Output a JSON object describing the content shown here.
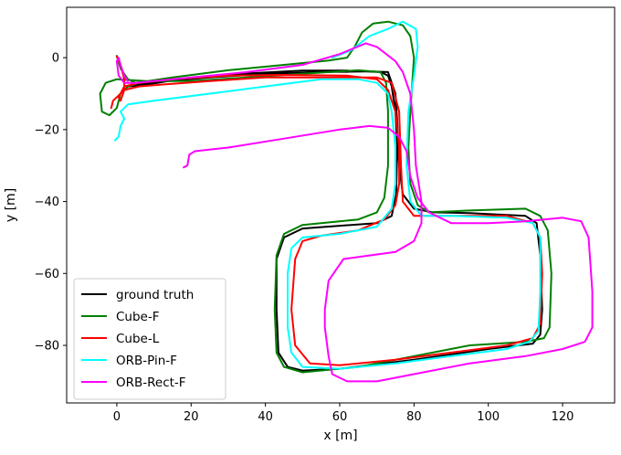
{
  "chart_data": {
    "type": "line",
    "title": "",
    "xlabel": "x [m]",
    "ylabel": "y [m]",
    "xlim": [
      -13.5,
      134
    ],
    "ylim": [
      -96,
      14
    ],
    "xticks": [
      0,
      20,
      40,
      60,
      80,
      100,
      120
    ],
    "yticks": [
      0,
      -20,
      -40,
      -60,
      -80
    ],
    "grid": false,
    "legend_position": "lower-left",
    "series": [
      {
        "name": "ground truth",
        "color": "#000000",
        "points": [
          [
            3,
            -8
          ],
          [
            4,
            -7.5
          ],
          [
            10,
            -6.8
          ],
          [
            20,
            -5.6
          ],
          [
            35,
            -4.4
          ],
          [
            50,
            -3.6
          ],
          [
            62,
            -3.6
          ],
          [
            71,
            -4
          ],
          [
            73,
            -5
          ],
          [
            74,
            -8
          ],
          [
            75,
            -15
          ],
          [
            75.5,
            -25
          ],
          [
            75.2,
            -38
          ],
          [
            74,
            -44
          ],
          [
            70,
            -46
          ],
          [
            50,
            -47.5
          ],
          [
            45,
            -50
          ],
          [
            43,
            -56
          ],
          [
            43,
            -70
          ],
          [
            43.5,
            -82
          ],
          [
            46,
            -86
          ],
          [
            50,
            -87
          ],
          [
            60,
            -86.5
          ],
          [
            80,
            -84
          ],
          [
            100,
            -81
          ],
          [
            112,
            -79.5
          ],
          [
            114,
            -77
          ],
          [
            114.5,
            -70
          ],
          [
            114,
            -55
          ],
          [
            113,
            -46
          ],
          [
            110,
            -44
          ],
          [
            95,
            -43.2
          ],
          [
            85,
            -43
          ],
          [
            80,
            -42
          ],
          [
            77,
            -38
          ],
          [
            76,
            -30
          ],
          [
            75.5,
            -18
          ],
          [
            75,
            -10
          ],
          [
            73,
            -4
          ],
          [
            68,
            -3.8
          ],
          [
            55,
            -4
          ],
          [
            40,
            -4.5
          ],
          [
            25,
            -5.5
          ],
          [
            14,
            -6.5
          ],
          [
            8,
            -7.5
          ],
          [
            3,
            -8
          ]
        ]
      },
      {
        "name": "Cube-F",
        "color": "#007f00",
        "points": [
          [
            0,
            0.5
          ],
          [
            1,
            -3
          ],
          [
            3,
            -6
          ],
          [
            5,
            -7
          ],
          [
            15,
            -5.5
          ],
          [
            30,
            -3.5
          ],
          [
            45,
            -2
          ],
          [
            57,
            -0.8
          ],
          [
            62,
            0
          ],
          [
            64,
            3
          ],
          [
            66,
            7
          ],
          [
            69,
            9.5
          ],
          [
            73,
            10
          ],
          [
            77,
            9
          ],
          [
            79,
            6
          ],
          [
            80,
            0
          ],
          [
            79,
            -15
          ],
          [
            78.5,
            -25
          ],
          [
            79,
            -35
          ],
          [
            81,
            -41
          ],
          [
            84,
            -43
          ],
          [
            95,
            -42.5
          ],
          [
            110,
            -42
          ],
          [
            114,
            -44
          ],
          [
            116,
            -48
          ],
          [
            117,
            -60
          ],
          [
            116.5,
            -75
          ],
          [
            115,
            -78
          ],
          [
            110,
            -79
          ],
          [
            95,
            -80
          ],
          [
            80,
            -83
          ],
          [
            65,
            -86
          ],
          [
            50,
            -87.5
          ],
          [
            45,
            -86
          ],
          [
            43,
            -82
          ],
          [
            42.5,
            -70
          ],
          [
            43,
            -55
          ],
          [
            45,
            -49
          ],
          [
            50,
            -46.5
          ],
          [
            65,
            -45
          ],
          [
            70,
            -43
          ],
          [
            72,
            -39
          ],
          [
            73,
            -30
          ],
          [
            73,
            -15
          ],
          [
            72.5,
            -7
          ],
          [
            71,
            -4
          ],
          [
            65,
            -3.5
          ],
          [
            50,
            -4.5
          ],
          [
            35,
            -5.5
          ],
          [
            20,
            -6.5
          ],
          [
            8,
            -6.5
          ],
          [
            0,
            -6
          ],
          [
            -3,
            -7
          ],
          [
            -4.5,
            -10
          ],
          [
            -4,
            -15
          ],
          [
            -2,
            -16
          ],
          [
            0,
            -14
          ],
          [
            1,
            -10
          ],
          [
            3,
            -8
          ],
          [
            6,
            -7
          ]
        ]
      },
      {
        "name": "Cube-L",
        "color": "#ff0000",
        "points": [
          [
            0,
            0.3
          ],
          [
            1,
            -2
          ],
          [
            2,
            -6
          ],
          [
            2,
            -9
          ],
          [
            1,
            -12
          ],
          [
            0.5,
            -11
          ],
          [
            2,
            -8
          ],
          [
            6,
            -7
          ],
          [
            15,
            -6
          ],
          [
            30,
            -5
          ],
          [
            45,
            -4.8
          ],
          [
            62,
            -5
          ],
          [
            70,
            -6
          ],
          [
            73,
            -9
          ],
          [
            75,
            -15
          ],
          [
            76,
            -25
          ],
          [
            76,
            -35
          ],
          [
            75,
            -41
          ],
          [
            72,
            -45
          ],
          [
            65,
            -48
          ],
          [
            55,
            -49.5
          ],
          [
            50,
            -51
          ],
          [
            48,
            -56
          ],
          [
            47,
            -70
          ],
          [
            48,
            -80
          ],
          [
            52,
            -85
          ],
          [
            60,
            -85.5
          ],
          [
            75,
            -84
          ],
          [
            90,
            -82
          ],
          [
            105,
            -80
          ],
          [
            112,
            -78
          ],
          [
            114,
            -74
          ],
          [
            114.5,
            -60
          ],
          [
            114,
            -50
          ],
          [
            112,
            -46
          ],
          [
            105,
            -44
          ],
          [
            90,
            -44
          ],
          [
            80,
            -44
          ],
          [
            77,
            -40
          ],
          [
            76.5,
            -30
          ],
          [
            76,
            -15
          ],
          [
            74,
            -7
          ],
          [
            70,
            -5.5
          ],
          [
            55,
            -5.5
          ],
          [
            40,
            -5.5
          ],
          [
            25,
            -6.5
          ],
          [
            12,
            -7.5
          ],
          [
            6,
            -8
          ],
          [
            2,
            -9
          ],
          [
            -1,
            -12
          ],
          [
            -1.5,
            -14
          ]
        ]
      },
      {
        "name": "ORB-Pin-F",
        "color": "#00ffff",
        "points": [
          [
            -0.5,
            -23
          ],
          [
            0.5,
            -22
          ],
          [
            1,
            -19
          ],
          [
            2,
            -17
          ],
          [
            1,
            -15
          ],
          [
            3,
            -13
          ],
          [
            10,
            -12
          ],
          [
            25,
            -10
          ],
          [
            40,
            -8
          ],
          [
            55,
            -6
          ],
          [
            65,
            -6
          ],
          [
            70,
            -7
          ],
          [
            73,
            -10
          ],
          [
            74,
            -15
          ],
          [
            75,
            -25
          ],
          [
            75,
            -35
          ],
          [
            74,
            -42
          ],
          [
            70,
            -47
          ],
          [
            60,
            -49
          ],
          [
            50,
            -50
          ],
          [
            47,
            -53
          ],
          [
            46,
            -60
          ],
          [
            46,
            -75
          ],
          [
            47,
            -82
          ],
          [
            50,
            -86
          ],
          [
            60,
            -86.5
          ],
          [
            75,
            -85
          ],
          [
            90,
            -83
          ],
          [
            105,
            -81
          ],
          [
            111,
            -79
          ],
          [
            113.5,
            -76
          ],
          [
            114,
            -65
          ],
          [
            114,
            -50
          ],
          [
            112,
            -46
          ],
          [
            105,
            -44.5
          ],
          [
            90,
            -44
          ],
          [
            82,
            -44
          ],
          [
            79,
            -40
          ],
          [
            78,
            -30
          ],
          [
            78.5,
            -15
          ],
          [
            80,
            -5
          ],
          [
            81,
            3
          ],
          [
            80.5,
            8
          ],
          [
            77,
            10
          ],
          [
            73,
            8
          ],
          [
            68,
            6
          ],
          [
            63,
            2
          ],
          [
            58,
            0
          ]
        ]
      },
      {
        "name": "ORB-Rect-F",
        "color": "#ff00ff",
        "points": [
          [
            18,
            -30.5
          ],
          [
            19,
            -30
          ],
          [
            19.5,
            -27
          ],
          [
            21,
            -26
          ],
          [
            30,
            -25
          ],
          [
            45,
            -22.5
          ],
          [
            60,
            -20
          ],
          [
            68,
            -19
          ],
          [
            73,
            -19.5
          ],
          [
            76,
            -22
          ],
          [
            78,
            -26
          ],
          [
            79,
            -33
          ],
          [
            81,
            -39
          ],
          [
            84,
            -43
          ],
          [
            90,
            -46
          ],
          [
            100,
            -46
          ],
          [
            110,
            -45.5
          ],
          [
            120,
            -44.5
          ],
          [
            125,
            -45.5
          ],
          [
            127,
            -50
          ],
          [
            128,
            -65
          ],
          [
            128,
            -75
          ],
          [
            126,
            -79
          ],
          [
            120,
            -81
          ],
          [
            110,
            -83
          ],
          [
            95,
            -85
          ],
          [
            80,
            -88
          ],
          [
            70,
            -90
          ],
          [
            62,
            -90
          ],
          [
            58,
            -88
          ],
          [
            57,
            -83
          ],
          [
            56,
            -75
          ],
          [
            56,
            -70
          ],
          [
            57,
            -62
          ],
          [
            61,
            -56
          ],
          [
            68,
            -55
          ],
          [
            75,
            -54
          ],
          [
            80,
            -51
          ],
          [
            82,
            -46
          ],
          [
            82,
            -40
          ],
          [
            80.5,
            -30
          ],
          [
            80,
            -20
          ],
          [
            79,
            -10
          ],
          [
            77,
            -4
          ],
          [
            75,
            -1
          ],
          [
            70,
            3
          ],
          [
            67,
            4
          ],
          [
            60,
            1
          ],
          [
            50,
            -2
          ],
          [
            35,
            -4
          ],
          [
            20,
            -5.5
          ],
          [
            10,
            -6.5
          ],
          [
            5,
            -7
          ],
          [
            2,
            -7
          ],
          [
            0.5,
            -5
          ],
          [
            0,
            -1
          ],
          [
            0.5,
            0
          ],
          [
            1,
            -2
          ],
          [
            2,
            -5
          ],
          [
            3,
            -6.5
          ]
        ]
      }
    ]
  }
}
